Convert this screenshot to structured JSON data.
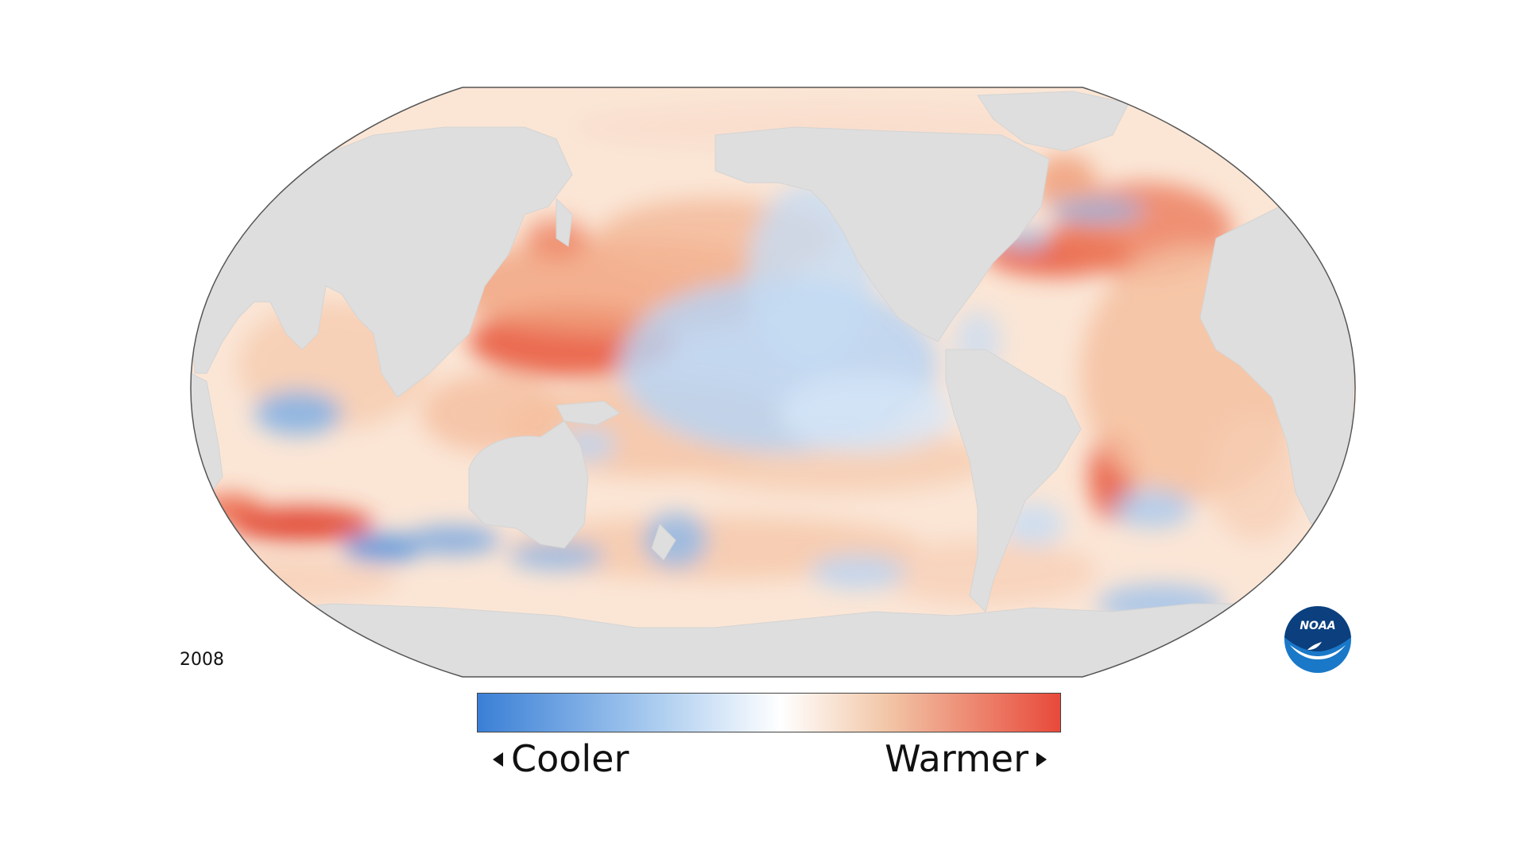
{
  "map": {
    "year": "2008",
    "projection": "robinson",
    "land_color": "#dedede",
    "ocean_base_color": "#fbe9dc"
  },
  "legend": {
    "cooler_label": "Cooler",
    "warmer_label": "Warmer",
    "cool_color": "#3a7fd6",
    "neutral_color": "#ffffff",
    "warm_color": "#e8493a"
  },
  "logo": {
    "text": "NOAA",
    "name": "noaa-logo"
  }
}
